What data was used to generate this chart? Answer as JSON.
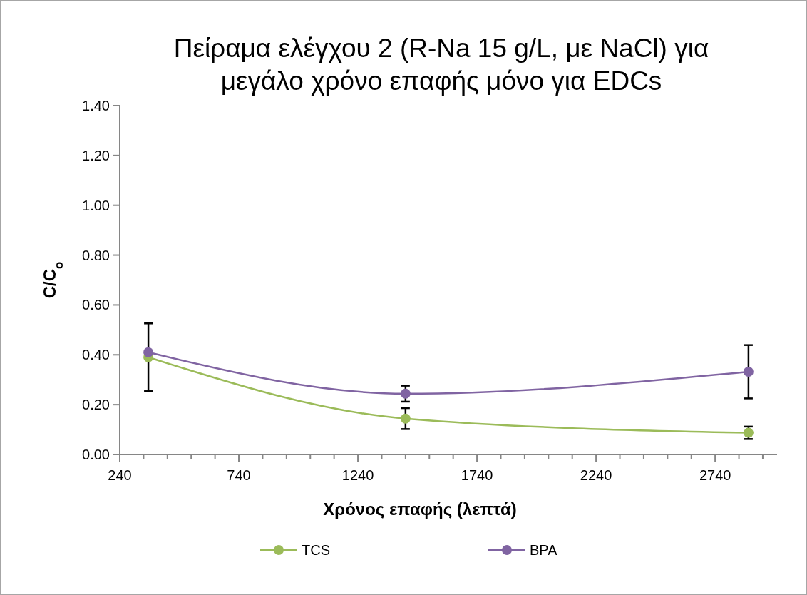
{
  "chart_data": {
    "type": "line",
    "title": "Πείραμα ελέγχου 2 (R-Na 15 g/L, με NaCl) για μεγάλο χρόνο επαφής μόνο για EDCs",
    "xlabel": "Χρόνος επαφής (λεπτά)",
    "ylabel": "C/C$_{o}$",
    "x": [
      360,
      1440,
      2880
    ],
    "series": [
      {
        "name": "TCS",
        "color": "#9bbb59",
        "values": [
          0.39,
          0.144,
          0.087
        ],
        "errors": [
          0.136,
          0.042,
          0.025
        ]
      },
      {
        "name": "BPA",
        "color": "#8064a2",
        "values": [
          0.41,
          0.244,
          0.332
        ],
        "errors": [
          null,
          0.032,
          0.107
        ]
      }
    ],
    "xlim": [
      240,
      3000
    ],
    "xticks": [
      240,
      {
        "value": 340,
        "label": null
      },
      {
        "value": 440,
        "label": null
      },
      {
        "value": 540,
        "label": null
      },
      {
        "value": 640,
        "label": null
      },
      740,
      {
        "value": 840,
        "label": null
      },
      {
        "value": 940,
        "label": null
      },
      {
        "value": 1040,
        "label": null
      },
      {
        "value": 1140,
        "label": null
      },
      1240,
      {
        "value": 1340,
        "label": null
      },
      {
        "value": 1440,
        "label": null
      },
      {
        "value": 1540,
        "label": null
      },
      {
        "value": 1640,
        "label": null
      },
      1740,
      {
        "value": 1840,
        "label": null
      },
      {
        "value": 1940,
        "label": null
      },
      {
        "value": 2040,
        "label": null
      },
      {
        "value": 2140,
        "label": null
      },
      2240,
      {
        "value": 2340,
        "label": null
      },
      {
        "value": 2440,
        "label": null
      },
      {
        "value": 2540,
        "label": null
      },
      {
        "value": 2640,
        "label": null
      },
      2740,
      {
        "value": 2840,
        "label": null
      },
      {
        "value": 2940,
        "label": null
      }
    ],
    "ylim": [
      0,
      1.4
    ],
    "yticks": [
      {
        "value": 0,
        "label": "0.00"
      },
      {
        "value": 0.2,
        "label": "0.20"
      },
      {
        "value": 0.4,
        "label": "0.40"
      },
      {
        "value": 0.6,
        "label": "0.60"
      },
      {
        "value": 0.8,
        "label": "0.80"
      },
      {
        "value": 1,
        "label": "1.00"
      },
      {
        "value": 1.2,
        "label": "1.20"
      },
      {
        "value": 1.4,
        "label": "1.40"
      }
    ],
    "grid": false,
    "legend": "bottom",
    "marker": "circle",
    "line_style": "solid"
  }
}
